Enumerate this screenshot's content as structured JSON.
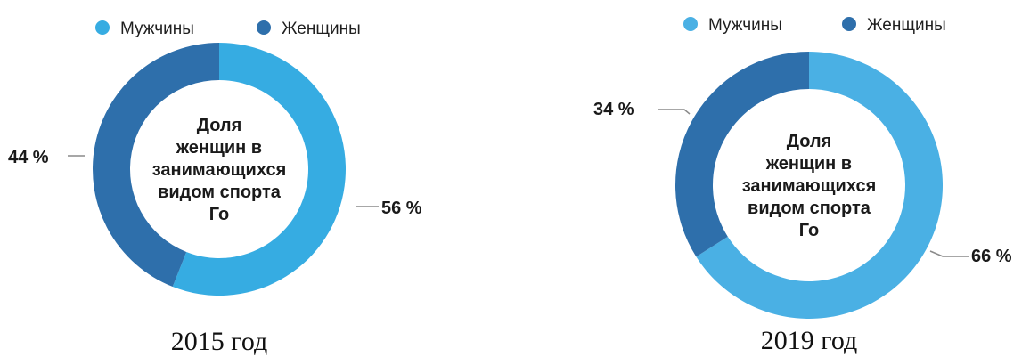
{
  "chart_data": [
    {
      "type": "pie",
      "donut": true,
      "title": "2015 год",
      "center_label": [
        "Доля",
        "женщин в",
        "занимающихся",
        "видом спорта",
        "Го"
      ],
      "categories": [
        "Мужчины",
        "Женщины"
      ],
      "values": [
        56,
        44
      ],
      "value_labels": [
        "56 %",
        "44 %"
      ],
      "colors": [
        "#36ace2",
        "#2e6fab"
      ],
      "legend": "top"
    },
    {
      "type": "pie",
      "donut": true,
      "title": "2019 год",
      "center_label": [
        "Доля",
        "женщин в",
        "занимающихся",
        "видом спорта",
        "Го"
      ],
      "categories": [
        "Мужчины",
        "Женщины"
      ],
      "values": [
        66,
        34
      ],
      "value_labels": [
        "66 %",
        "34 %"
      ],
      "colors": [
        "#4ab0e4",
        "#2e6fab"
      ],
      "legend": "top"
    }
  ]
}
